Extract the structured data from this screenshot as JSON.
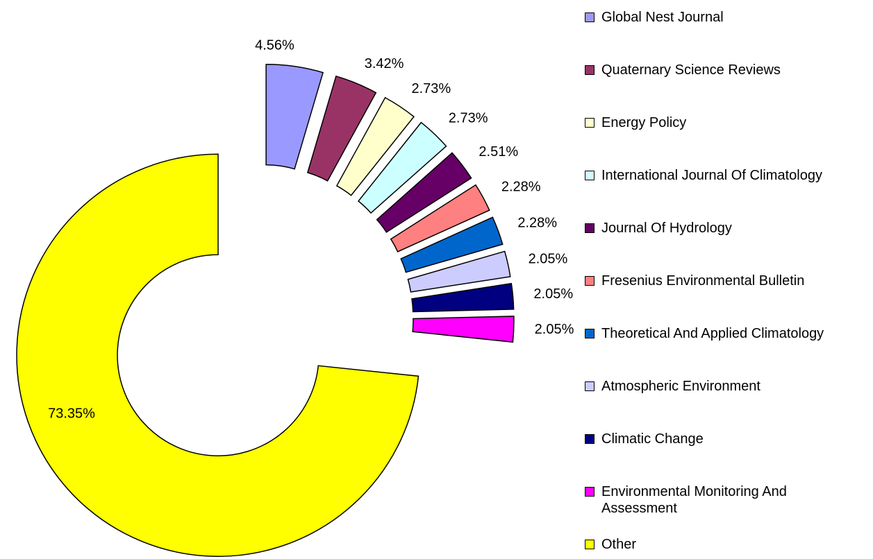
{
  "chart_data": {
    "type": "donut",
    "categories": [
      "Global Nest Journal",
      "Quaternary Science Reviews",
      "Energy Policy",
      "International Journal Of Climatology",
      "Journal Of Hydrology",
      "Fresenius Environmental Bulletin",
      "Theoretical And Applied Climatology",
      "Atmospheric Environment",
      "Climatic Change",
      "Environmental Monitoring And Assessment",
      "Other"
    ],
    "values": [
      4.56,
      3.42,
      2.73,
      2.73,
      2.51,
      2.28,
      2.28,
      2.05,
      2.05,
      2.05,
      73.35
    ],
    "value_labels": [
      "4.56%",
      "3.42%",
      "2.73%",
      "2.73%",
      "2.51%",
      "2.28%",
      "2.28%",
      "2.05%",
      "2.05%",
      "2.05%",
      "73.35%"
    ],
    "colors": [
      "#9999ff",
      "#993366",
      "#ffffcc",
      "#ccffff",
      "#660066",
      "#ff8080",
      "#0066cc",
      "#ccccff",
      "#000080",
      "#ff00ff",
      "#ffff00"
    ],
    "legend": "right"
  }
}
